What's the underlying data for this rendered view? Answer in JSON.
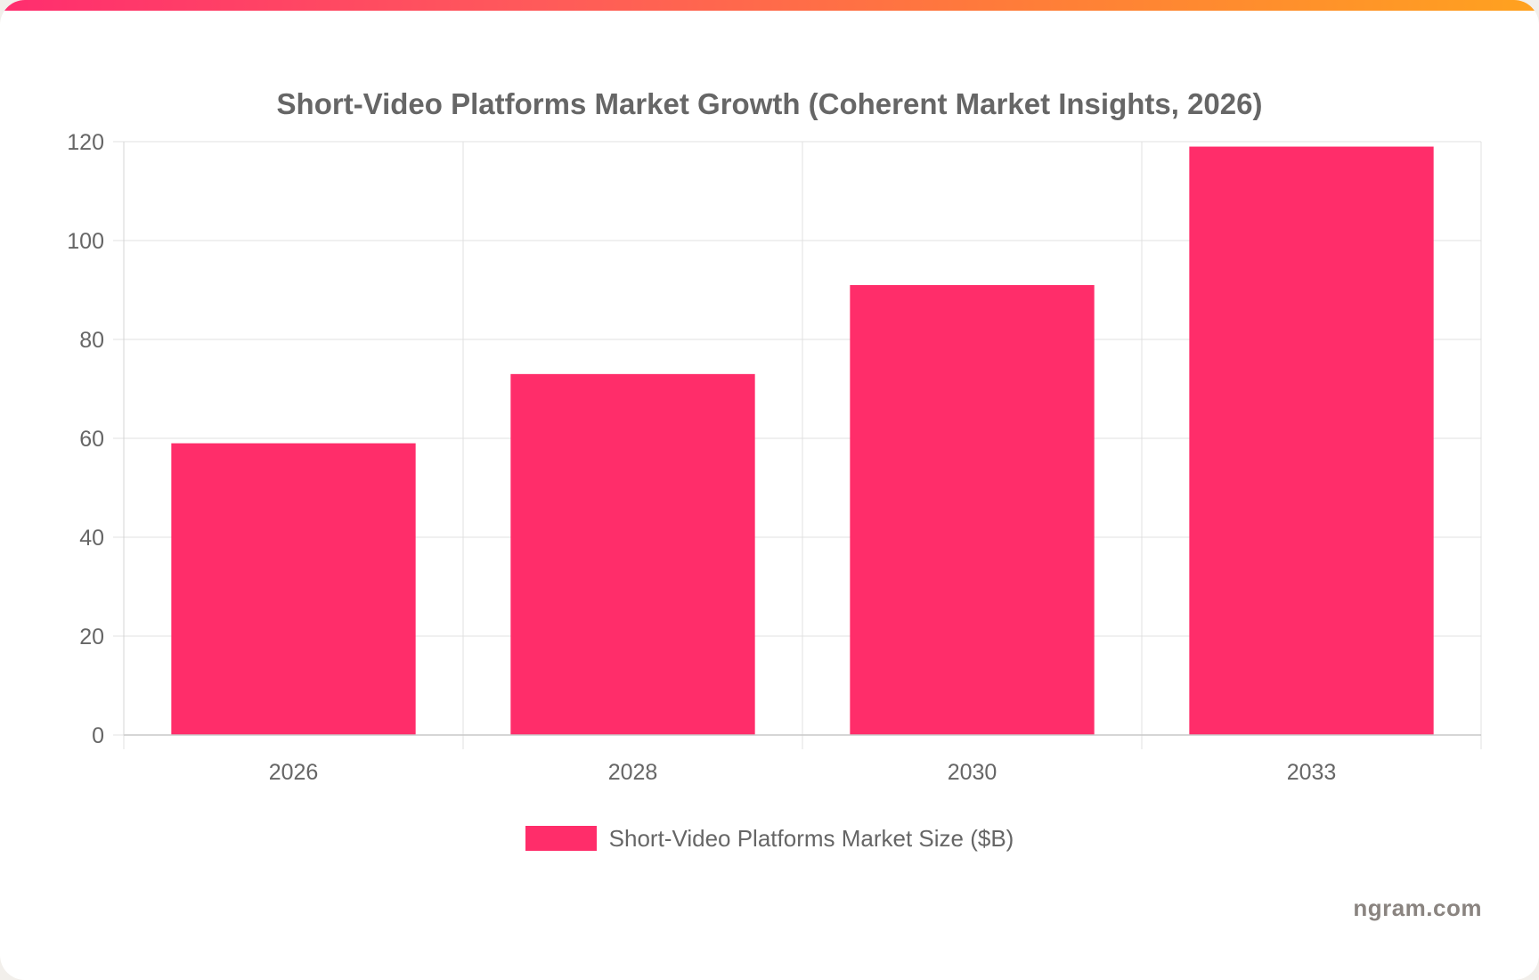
{
  "colors": {
    "bar": "#ff2d6a",
    "grid": "#e1e1e1",
    "axis_text": "#666666",
    "title": "#666666",
    "brand": "#8a8480"
  },
  "chart_data": {
    "type": "bar",
    "title": "Short-Video Platforms Market Growth (Coherent Market Insights, 2026)",
    "categories": [
      "2026",
      "2028",
      "2030",
      "2033"
    ],
    "series": [
      {
        "name": "Short-Video Platforms Market Size ($B)",
        "values": [
          59,
          73,
          91,
          119
        ]
      }
    ],
    "ylim": [
      0,
      120
    ],
    "yticks": [
      0,
      20,
      40,
      60,
      80,
      100,
      120
    ],
    "grid": true,
    "legend_position": "bottom"
  },
  "legend": {
    "label": "Short-Video Platforms Market Size ($B)"
  },
  "brand": {
    "text": "ngram.com"
  }
}
